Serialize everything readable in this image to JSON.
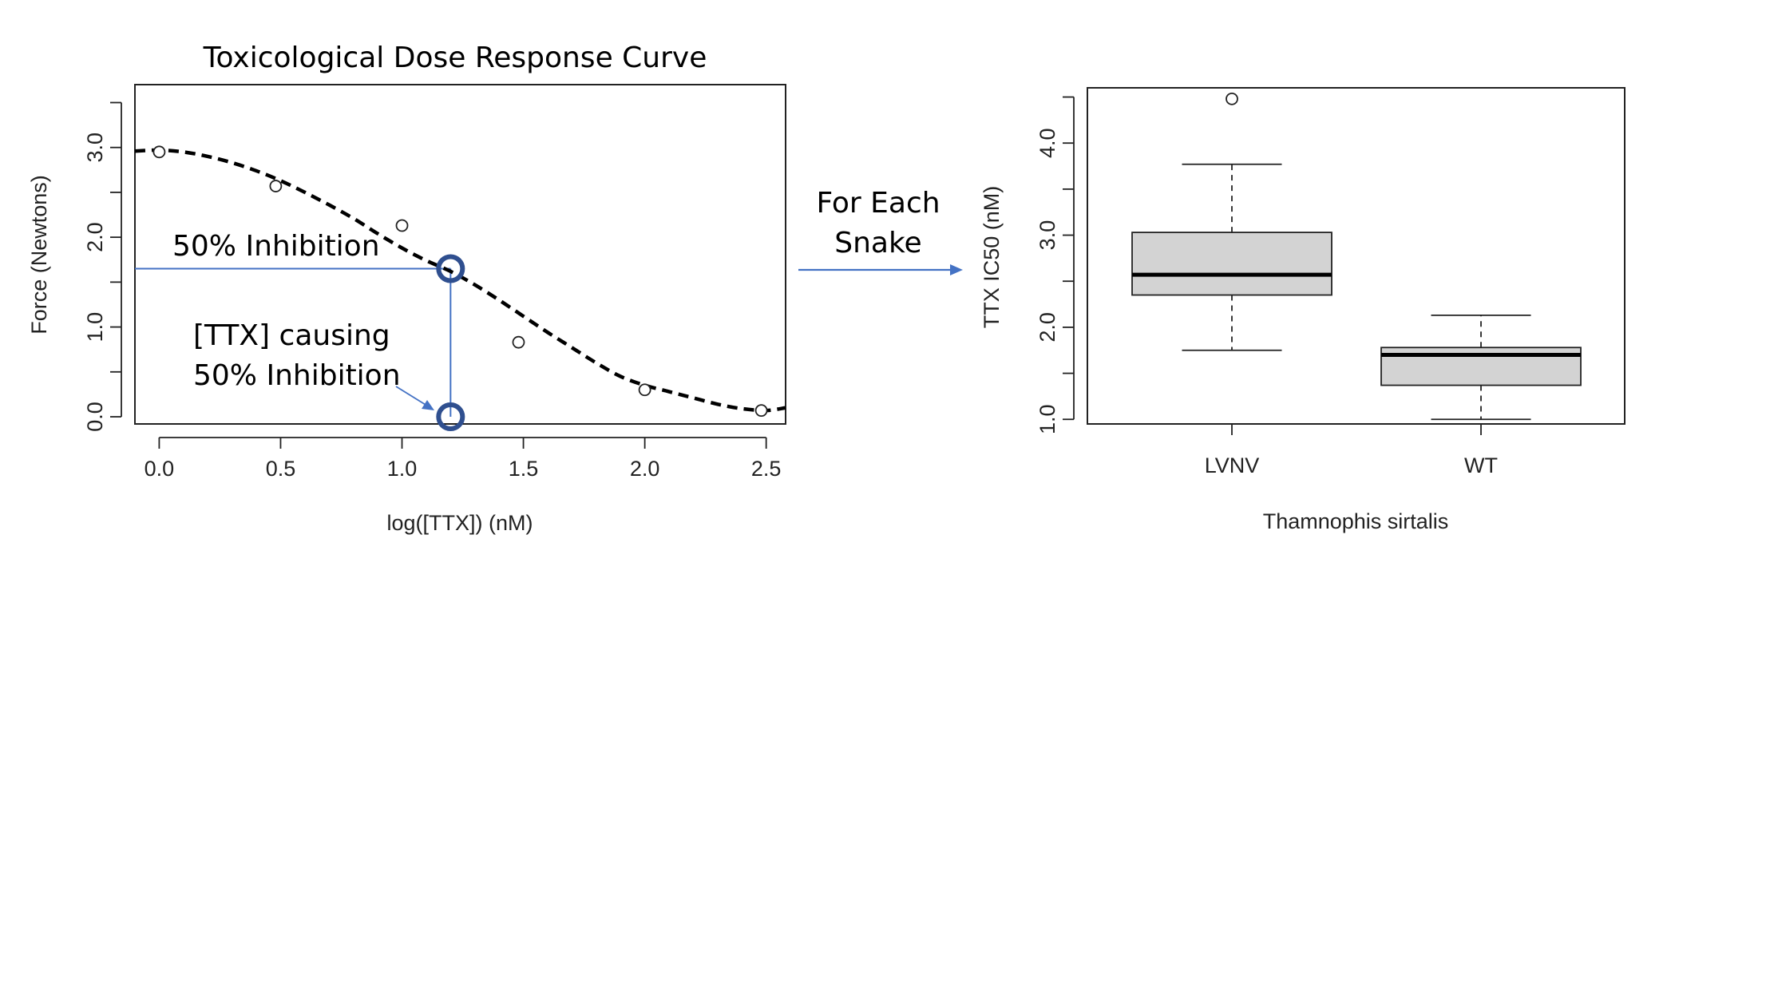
{
  "chart_data": [
    {
      "type": "scatter",
      "title": "Toxicological Dose Response Curve",
      "xlabel": "log([TTX]) (nM)",
      "ylabel": "Force (Newtons)",
      "xlim": [
        -0.1,
        2.58
      ],
      "ylim": [
        -0.08,
        3.7
      ],
      "x_ticks": [
        0.0,
        0.5,
        1.0,
        1.5,
        2.0,
        2.5
      ],
      "x_tick_labels": [
        "0.0",
        "0.5",
        "1.0",
        "1.5",
        "2.0",
        "2.5"
      ],
      "y_ticks": [
        0.0,
        1.0,
        2.0,
        3.0
      ],
      "y_tick_labels": [
        "0.0",
        "1.0",
        "2.0",
        "3.0"
      ],
      "y_minor_ticks": [
        0.5,
        1.5,
        2.5,
        3.5
      ],
      "points": [
        {
          "x": 0.0,
          "y": 2.95
        },
        {
          "x": 0.48,
          "y": 2.57
        },
        {
          "x": 1.0,
          "y": 2.13
        },
        {
          "x": 1.48,
          "y": 0.83
        },
        {
          "x": 2.0,
          "y": 0.3
        },
        {
          "x": 2.48,
          "y": 0.07
        }
      ],
      "fit_curve": [
        {
          "x": -0.1,
          "y": 2.96
        },
        {
          "x": 0.0,
          "y": 2.97
        },
        {
          "x": 0.1,
          "y": 2.95
        },
        {
          "x": 0.2,
          "y": 2.9
        },
        {
          "x": 0.3,
          "y": 2.83
        },
        {
          "x": 0.4,
          "y": 2.74
        },
        {
          "x": 0.5,
          "y": 2.63
        },
        {
          "x": 0.6,
          "y": 2.5
        },
        {
          "x": 0.7,
          "y": 2.36
        },
        {
          "x": 0.8,
          "y": 2.21
        },
        {
          "x": 0.9,
          "y": 2.04
        },
        {
          "x": 1.0,
          "y": 1.88
        },
        {
          "x": 1.1,
          "y": 1.74
        },
        {
          "x": 1.2,
          "y": 1.62
        },
        {
          "x": 1.3,
          "y": 1.47
        },
        {
          "x": 1.4,
          "y": 1.3
        },
        {
          "x": 1.5,
          "y": 1.12
        },
        {
          "x": 1.6,
          "y": 0.94
        },
        {
          "x": 1.7,
          "y": 0.77
        },
        {
          "x": 1.8,
          "y": 0.6
        },
        {
          "x": 1.9,
          "y": 0.45
        },
        {
          "x": 2.0,
          "y": 0.35
        },
        {
          "x": 2.1,
          "y": 0.28
        },
        {
          "x": 2.2,
          "y": 0.21
        },
        {
          "x": 2.3,
          "y": 0.14
        },
        {
          "x": 2.4,
          "y": 0.09
        },
        {
          "x": 2.5,
          "y": 0.07
        },
        {
          "x": 2.58,
          "y": 0.1
        }
      ],
      "ic50_point": {
        "x": 1.2,
        "y": 1.65
      },
      "annotations": {
        "inhibition_label": "50% Inhibition",
        "ttx_label_line1": "[TTX] causing",
        "ttx_label_line2": "50% Inhibition"
      },
      "colors": {
        "guide": "#4472C4",
        "marker": "#2F4F8F",
        "curve": "#000000"
      }
    },
    {
      "type": "box",
      "xlabel": "Thamnophis sirtalis",
      "ylabel": "TTX IC50 (nM)",
      "ylim": [
        0.95,
        4.6
      ],
      "y_ticks": [
        1.0,
        2.0,
        3.0,
        4.0
      ],
      "y_tick_labels": [
        "1.0",
        "2.0",
        "3.0",
        "4.0"
      ],
      "y_minor_ticks": [
        1.5,
        2.5,
        3.5,
        4.5
      ],
      "categories": [
        "LVNV",
        "WT"
      ],
      "boxes": [
        {
          "name": "LVNV",
          "whisker_low": 1.75,
          "q1": 2.35,
          "median": 2.57,
          "q3": 3.03,
          "whisker_high": 3.77,
          "outliers": [
            4.48
          ]
        },
        {
          "name": "WT",
          "whisker_low": 1.0,
          "q1": 1.37,
          "median": 1.7,
          "q3": 1.78,
          "whisker_high": 2.13,
          "outliers": []
        }
      ],
      "colors": {
        "box_fill": "#D3D3D3"
      }
    }
  ],
  "connector": {
    "line1": "For Each",
    "line2": "Snake",
    "color": "#4472C4"
  }
}
